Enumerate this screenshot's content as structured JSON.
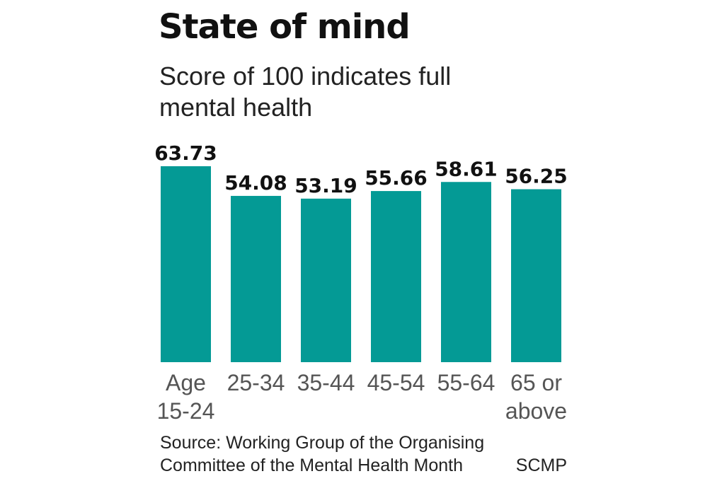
{
  "chart_data": {
    "type": "bar",
    "title": "State of mind",
    "subtitle": "Score of 100 indicates full mental health",
    "categories": [
      [
        "Age",
        "15-24"
      ],
      [
        "25-34"
      ],
      [
        "35-44"
      ],
      [
        "45-54"
      ],
      [
        "55-64"
      ],
      [
        "65 or",
        "above"
      ]
    ],
    "values": [
      63.73,
      54.08,
      53.19,
      55.66,
      58.61,
      56.25
    ],
    "value_labels": [
      "63.73",
      "54.08",
      "53.19",
      "55.66",
      "58.61",
      "56.25"
    ],
    "ylim": [
      0,
      63.73
    ],
    "grid": false,
    "bar_color": "#049a95",
    "label_color": "#111111",
    "tick_color": "#555555"
  },
  "footer": {
    "source": "Source: Working Group of the Organising Committee of the Mental Health Month",
    "credit": "SCMP"
  }
}
